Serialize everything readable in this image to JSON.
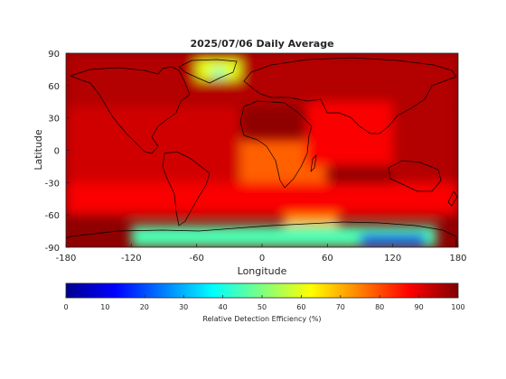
{
  "chart_data": {
    "type": "heatmap",
    "title": "2025/07/06 Daily Average",
    "xlabel": "Longitude",
    "ylabel": "Latitude",
    "xlim": [
      -180,
      180
    ],
    "ylim": [
      -90,
      90
    ],
    "x_ticks": [
      -180,
      -120,
      -60,
      0,
      60,
      120,
      180
    ],
    "y_ticks": [
      90,
      60,
      30,
      0,
      -30,
      -60,
      -90
    ],
    "colorbar": {
      "label": "Relative Detection Efficiency (%)",
      "range": [
        0,
        100
      ],
      "ticks": [
        0,
        10,
        20,
        30,
        40,
        50,
        60,
        70,
        80,
        90,
        100
      ],
      "colormap": "jet",
      "colors": [
        "#00008f",
        "#0000ff",
        "#00ffff",
        "#ffff00",
        "#ff0000",
        "#800000"
      ]
    },
    "grid": false,
    "overlay": "coastlines",
    "regions": [
      {
        "lon": [
          -180,
          180
        ],
        "lat": [
          40,
          90
        ],
        "value": 95
      },
      {
        "lon": [
          -180,
          -20
        ],
        "lat": [
          -30,
          40
        ],
        "value": 92
      },
      {
        "lon": [
          -20,
          60
        ],
        "lat": [
          -45,
          10
        ],
        "value": 78
      },
      {
        "lon": [
          20,
          70
        ],
        "lat": [
          -75,
          -40
        ],
        "value": 72
      },
      {
        "lon": [
          40,
          120
        ],
        "lat": [
          -15,
          45
        ],
        "value": 88
      },
      {
        "lon": [
          120,
          180
        ],
        "lat": [
          -60,
          40
        ],
        "value": 95
      },
      {
        "lon": [
          -180,
          180
        ],
        "lat": [
          -60,
          -30
        ],
        "value": 88
      },
      {
        "lon": [
          -60,
          -20
        ],
        "lat": [
          65,
          85
        ],
        "value": 60
      },
      {
        "lon": [
          -45,
          -35
        ],
        "lat": [
          68,
          75
        ],
        "value": 40
      },
      {
        "lon": [
          -120,
          160
        ],
        "lat": [
          -90,
          -70
        ],
        "value": 45
      },
      {
        "lon": [
          90,
          150
        ],
        "lat": [
          -88,
          -78
        ],
        "value": 10
      }
    ]
  }
}
